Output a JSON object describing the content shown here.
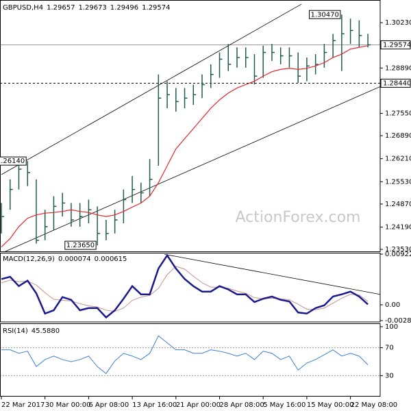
{
  "chart_data": {
    "type": "ohlc",
    "symbol": "GBPUSD,H4",
    "quote": [
      1.29657,
      1.29673,
      1.29496,
      1.29574
    ],
    "watermark": "ActionForex.com",
    "categories": [
      "22 Mar 2017",
      null,
      null,
      null,
      null,
      "30 Mar 00:00",
      null,
      null,
      null,
      null,
      "6 Apr 08:00",
      null,
      null,
      null,
      null,
      "13 Apr 16:00",
      null,
      null,
      null,
      null,
      "21 Apr 00:00",
      null,
      null,
      null,
      null,
      "28 Apr 08:00",
      null,
      null,
      null,
      null,
      "5 May 16:00",
      null,
      null,
      null,
      null,
      "15 May 00:00",
      null,
      null,
      null,
      null,
      "22 May 08:00",
      null,
      null
    ],
    "high": [
      1.249,
      1.256,
      1.261,
      1.2614,
      1.256,
      1.247,
      1.251,
      1.252,
      1.249,
      1.249,
      1.25,
      1.248,
      1.244,
      1.247,
      1.253,
      1.257,
      1.255,
      1.262,
      1.287,
      1.285,
      1.283,
      1.283,
      1.284,
      1.287,
      1.29,
      1.2935,
      1.296,
      1.295,
      1.295,
      1.293,
      1.2955,
      1.296,
      1.295,
      1.295,
      1.2935,
      1.292,
      1.293,
      1.296,
      1.299,
      1.3047,
      1.3035,
      1.303,
      1.299
    ],
    "low": [
      1.24,
      1.247,
      1.253,
      1.254,
      1.237,
      1.238,
      1.241,
      1.245,
      1.242,
      1.242,
      1.243,
      1.2365,
      1.238,
      1.24,
      1.243,
      1.249,
      1.249,
      1.251,
      1.26,
      1.277,
      1.276,
      1.277,
      1.278,
      1.28,
      1.283,
      1.286,
      1.288,
      1.289,
      1.289,
      1.284,
      1.286,
      1.291,
      1.29,
      1.289,
      1.2845,
      1.285,
      1.287,
      1.289,
      1.292,
      1.288,
      1.296,
      1.295,
      1.295
    ],
    "close": [
      1.245,
      1.253,
      1.259,
      1.258,
      1.238,
      1.242,
      1.248,
      1.249,
      1.244,
      1.245,
      1.247,
      1.24,
      1.24,
      1.244,
      1.25,
      1.253,
      1.252,
      1.256,
      1.28,
      1.281,
      1.279,
      1.28,
      1.281,
      1.284,
      1.287,
      1.2915,
      1.29,
      1.292,
      1.292,
      1.2865,
      1.2935,
      1.2935,
      1.2925,
      1.2925,
      1.2865,
      1.2895,
      1.29,
      1.2935,
      1.297,
      1.299,
      1.3,
      1.2985,
      1.29574
    ],
    "ma": [
      1.236,
      1.2385,
      1.242,
      1.2445,
      1.2455,
      1.246,
      1.2462,
      1.2465,
      1.247,
      1.2465,
      1.2462,
      1.2455,
      1.245,
      1.2455,
      1.2465,
      1.2478,
      1.249,
      1.251,
      1.255,
      1.26,
      1.265,
      1.268,
      1.271,
      1.274,
      1.277,
      1.2795,
      1.2815,
      1.283,
      1.284,
      1.285,
      1.2865,
      1.2878,
      1.2885,
      1.2888,
      1.2885,
      1.2888,
      1.2895,
      1.2905,
      1.292,
      1.293,
      1.2945,
      1.295,
      1.2955
    ],
    "bar_color": "#1f5c4c",
    "ma_color": "#e3262c",
    "ylim": [
      1.2347,
      1.3088
    ],
    "yticks": [
      {
        "value": 1.3023,
        "label": "1.30230"
      },
      {
        "value": 1.2889,
        "label": "1.28890"
      },
      {
        "value": 1.2755,
        "label": "1.27550"
      },
      {
        "value": 1.2689,
        "label": "1.26890"
      },
      {
        "value": 1.2621,
        "label": "1.26210"
      },
      {
        "value": 1.2553,
        "label": "1.25530"
      },
      {
        "value": 1.2487,
        "label": "1.24870"
      },
      {
        "value": 1.2419,
        "label": "1.24190"
      },
      {
        "value": 1.2353,
        "label": "1.23530"
      }
    ],
    "hlines": [
      {
        "value": 1.29574,
        "style": "solid"
      },
      {
        "value": {
          "value": 1.2844,
          "label": "1.28440"
        },
        "style": "dashed"
      }
    ],
    "annotations": [
      {
        "index": 39,
        "value": 1.3047,
        "label": "1.30470"
      },
      {
        "index": 11,
        "value": 1.2365,
        "label": "1.23650"
      },
      {
        "index": 3,
        "value": 1.2614,
        "label": "1.26140"
      }
    ],
    "trendlines": [
      {
        "from": [
          0,
          1.2574
        ],
        "to": [
          34.4,
          1.3078
        ]
      },
      {
        "from": [
          0.47,
          1.2347
        ],
        "to": [
          43.4,
          1.2834
        ]
      }
    ],
    "macd": {
      "title": "MACD(12,26,9)",
      "readings": [
        7.4e-05,
        0.000615
      ],
      "main": [
        0.00468,
        0.0051,
        0.0034,
        0.0044,
        0.0021,
        -0.0016,
        -0.001,
        0.0014,
        0.0009,
        -0.001,
        -0.0006,
        -0.0006,
        -0.0023,
        -0.001,
        0.0011,
        0.0034,
        0.0019,
        0.0019,
        0.0066,
        0.009,
        0.0066,
        0.0047,
        0.0034,
        0.0024,
        0.0024,
        0.0034,
        0.0028,
        0.0019,
        0.0019,
        0.0005,
        0.0011,
        0.0015,
        0.0009,
        0.0006,
        -0.0014,
        -0.0016,
        -0.0006,
        -0.0001,
        0.0015,
        0.0019,
        0.0024,
        0.0015,
        7.4e-05
      ],
      "signal": [
        0.004,
        0.0045,
        0.0042,
        0.0043,
        0.0036,
        0.0022,
        0.001,
        0.0008,
        0.0007,
        0.0002,
        -0.0002,
        -0.0004,
        -0.001,
        -0.0012,
        -0.0006,
        0.0008,
        0.0014,
        0.0017,
        0.003,
        0.0055,
        0.007,
        0.0065,
        0.0052,
        0.004,
        0.0032,
        0.0032,
        0.003,
        0.0025,
        0.0021,
        0.0013,
        0.0011,
        0.0012,
        0.0011,
        0.0009,
        0.0001,
        -0.0008,
        -0.0009,
        -0.0006,
        0.0003,
        0.0012,
        0.0019,
        0.0018,
        0.000615
      ],
      "main_color": "#1a1a8c",
      "signal_color": "#c89090",
      "ylim": [
        -0.002879,
        0.009227
      ],
      "yticks": [
        0.009227,
        {
          "value": 0,
          "label": "0.00"
        },
        -0.002879
      ],
      "trendline": {
        "from": [
          18.7,
          0.0092
        ],
        "to": [
          43.4,
          0.0019
        ]
      }
    },
    "rsi": {
      "title": "RSI(14)",
      "reading": {
        "value": 45.588,
        "label": "45.5880"
      },
      "values": [
        67,
        67,
        62,
        65,
        43,
        53,
        58,
        53,
        50,
        53,
        58,
        43,
        33,
        51,
        62,
        58,
        53,
        62,
        87,
        77,
        67,
        67,
        62,
        62,
        67,
        65,
        62,
        58,
        62,
        53,
        65,
        62,
        53,
        58,
        38,
        48,
        53,
        60,
        67,
        58,
        62,
        58,
        45.588
      ],
      "color": "#3a7fd8",
      "ylim": [
        0,
        100
      ],
      "yticks": [
        100,
        70,
        30
      ],
      "grid": true
    }
  }
}
